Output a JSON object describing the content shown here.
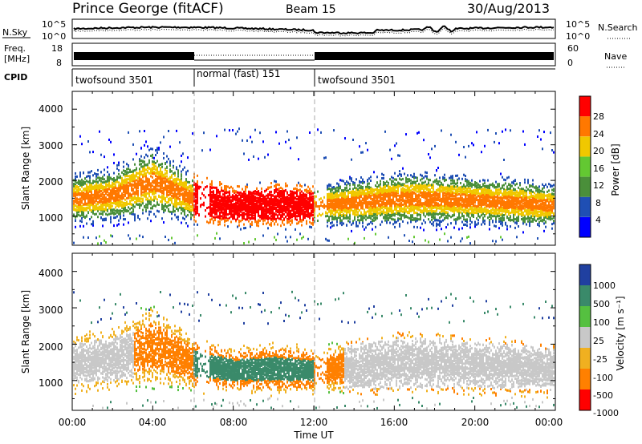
{
  "header": {
    "station": "Prince George (fitACF)",
    "beam": "Beam 15",
    "date": "30/Aug/2013"
  },
  "noise_panel": {
    "left_label": "N.Sky",
    "left_ticks": [
      "10^5",
      "10^0"
    ],
    "right_label": "N.Search",
    "right_ticks": [
      "10^5",
      "10^0"
    ]
  },
  "freq_panel": {
    "left_label_line1": "Freq.",
    "left_label_line2": "[MHz]",
    "left_ticks": [
      "18",
      "8"
    ],
    "right_label": "Nave",
    "right_ticks": [
      "60",
      "0"
    ]
  },
  "cpid_panel": {
    "label": "CPID",
    "modes": [
      {
        "name": "twofsound 3501",
        "start_hour": 0,
        "end_hour": 6
      },
      {
        "name": "normal (fast) 151",
        "start_hour": 6,
        "end_hour": 12
      },
      {
        "name": "twofsound 3501",
        "start_hour": 12,
        "end_hour": 24
      }
    ]
  },
  "power_panel": {
    "ylabel": "Slant Range [km]",
    "yticks": [
      "4000",
      "3000",
      "2000",
      "1000"
    ],
    "colorbar_label": "Power [dB]",
    "colorbar_ticks": [
      "28",
      "24",
      "20",
      "16",
      "12",
      "8",
      "4"
    ],
    "colors": [
      "#0000ff",
      "#1f4fb4",
      "#4a8f3a",
      "#63c832",
      "#f0c800",
      "#ff7800",
      "#ff0000"
    ]
  },
  "velocity_panel": {
    "ylabel": "Slant Range [km]",
    "yticks": [
      "4000",
      "3000",
      "2000",
      "1000"
    ],
    "colorbar_label": "Velocity [m s⁻¹]",
    "colorbar_ticks": [
      "1000",
      "500",
      "100",
      "25",
      "-25",
      "-100",
      "-500",
      "-1000"
    ],
    "colors": [
      "#2040a0",
      "#3a8a6a",
      "#55c040",
      "#c8c8c8",
      "#f0b020",
      "#ff8000",
      "#ff0000"
    ]
  },
  "xaxis": {
    "label": "Time UT",
    "ticks": [
      "00:00",
      "04:00",
      "08:00",
      "12:00",
      "16:00",
      "20:00",
      "00:00"
    ]
  },
  "chart_data": {
    "type": "heatmap",
    "x_range_hours": [
      0,
      24
    ],
    "y_range_km": [
      180,
      4500
    ],
    "mode_boundaries_hours": [
      6,
      12
    ],
    "power_band_km": [
      {
        "hour": 0,
        "center": 1500,
        "width": 900
      },
      {
        "hour": 2,
        "center": 1600,
        "width": 1000
      },
      {
        "hour": 4,
        "center": 2000,
        "width": 1300
      },
      {
        "hour": 6,
        "center": 1500,
        "width": 900
      },
      {
        "hour": 8,
        "center": 1300,
        "width": 700
      },
      {
        "hour": 10,
        "center": 1350,
        "width": 800
      },
      {
        "hour": 12,
        "center": 1300,
        "width": 700
      },
      {
        "hour": 14,
        "center": 1400,
        "width": 900
      },
      {
        "hour": 16,
        "center": 1500,
        "width": 1000
      },
      {
        "hour": 18,
        "center": 1500,
        "width": 1000
      },
      {
        "hour": 20,
        "center": 1450,
        "width": 900
      },
      {
        "hour": 22,
        "center": 1400,
        "width": 900
      },
      {
        "hour": 24,
        "center": 1300,
        "width": 800
      }
    ]
  }
}
